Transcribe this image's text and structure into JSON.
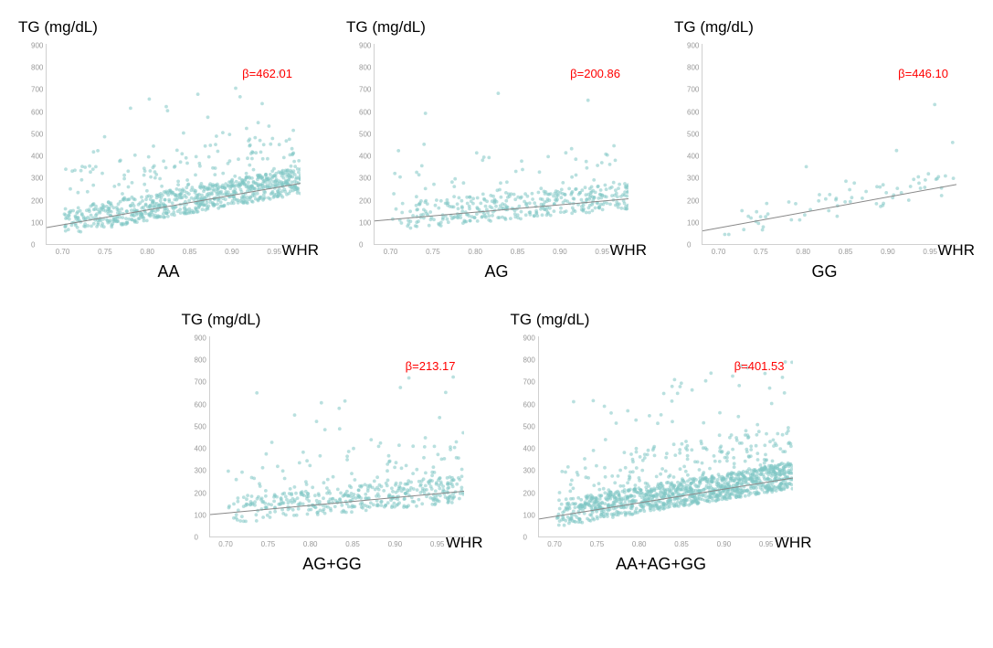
{
  "y_axis_title": "TG (mg/dL)",
  "x_axis_title": "WHR",
  "beta_prefix": "β=",
  "xlim": [
    0.68,
    0.98
  ],
  "ylim": [
    0,
    900
  ],
  "yticks": [
    0,
    100,
    200,
    300,
    400,
    500,
    600,
    700,
    800,
    900
  ],
  "xticks": [
    0.7,
    0.75,
    0.8,
    0.85,
    0.9,
    0.95
  ],
  "marker_color": "#7fc7c4",
  "marker_opacity": 0.55,
  "marker_radius": 1.9,
  "line_color": "#888888",
  "line_width": 1,
  "beta_color": "#ff0000",
  "background_color": "#ffffff",
  "axis_color": "#d0d0d0",
  "title_fontsize": 17,
  "group_fontsize": 18,
  "beta_fontsize": 13,
  "tick_fontsize": 8,
  "tick_color": "#999999",
  "panels": [
    {
      "group": "AA",
      "beta": 462.01,
      "n_points": 900,
      "density": "high",
      "line": {
        "x1": 0.68,
        "y1": 70,
        "x2": 0.98,
        "y2": 270
      }
    },
    {
      "group": "AG",
      "beta": 200.86,
      "n_points": 420,
      "density": "medium",
      "line": {
        "x1": 0.68,
        "y1": 100,
        "x2": 0.98,
        "y2": 200
      }
    },
    {
      "group": "GG",
      "beta": 446.1,
      "n_points": 70,
      "density": "low",
      "line": {
        "x1": 0.68,
        "y1": 55,
        "x2": 0.98,
        "y2": 265
      }
    },
    {
      "group": "AG+GG",
      "beta": 213.17,
      "n_points": 480,
      "density": "medium",
      "line": {
        "x1": 0.68,
        "y1": 95,
        "x2": 0.98,
        "y2": 200
      }
    },
    {
      "group": "AA+AG+GG",
      "beta": 401.53,
      "n_points": 1300,
      "density": "very-high",
      "line": {
        "x1": 0.68,
        "y1": 75,
        "x2": 0.98,
        "y2": 260
      }
    }
  ]
}
